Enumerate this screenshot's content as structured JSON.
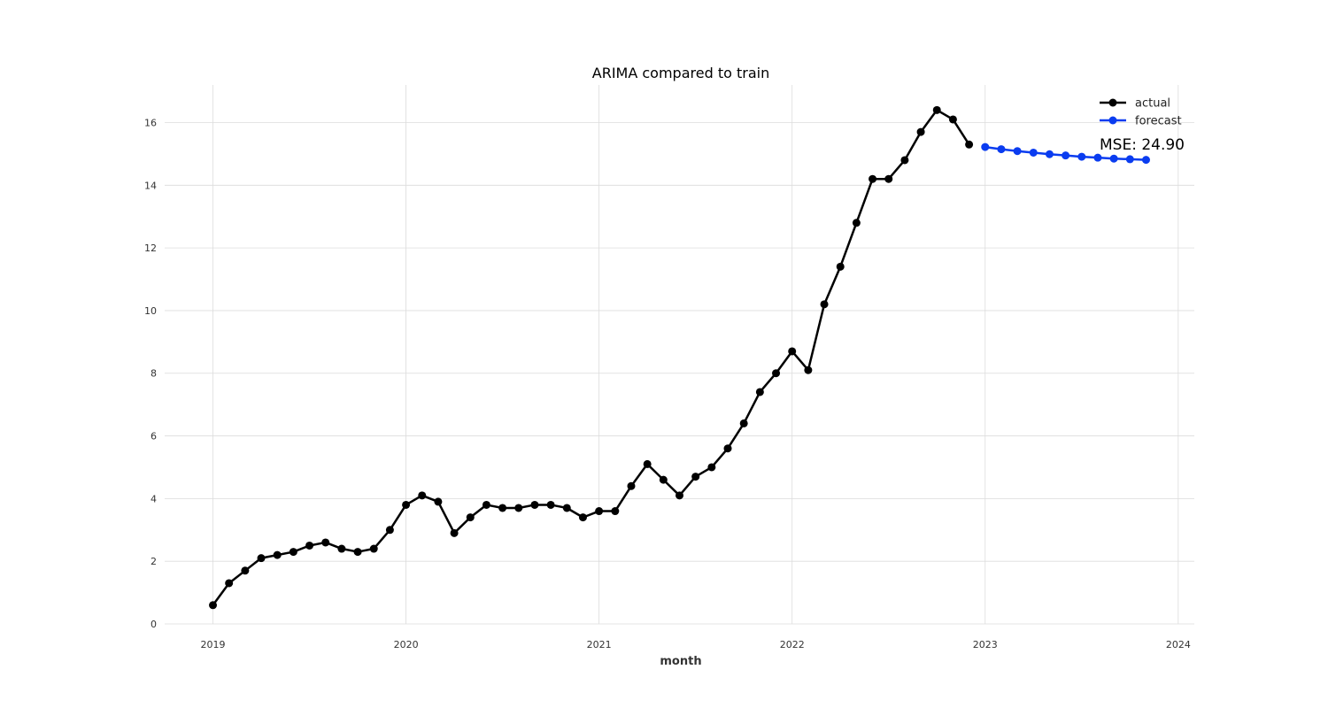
{
  "chart_data": {
    "type": "line",
    "title": "ARIMA compared to train",
    "xlabel": "month",
    "ylabel": "",
    "xlim": [
      "2018-10",
      "2024-02"
    ],
    "ylim": [
      0,
      17.2
    ],
    "x_ticks": [
      "2019",
      "2020",
      "2021",
      "2022",
      "2023",
      "2024"
    ],
    "y_ticks": [
      "0",
      "2",
      "4",
      "6",
      "8",
      "10",
      "12",
      "14",
      "16"
    ],
    "grid": true,
    "legend_position": "top-right",
    "annotation": "MSE: 24.90",
    "series": [
      {
        "name": "actual",
        "color": "#000000",
        "x": [
          "2019-01",
          "2019-02",
          "2019-03",
          "2019-04",
          "2019-05",
          "2019-06",
          "2019-07",
          "2019-08",
          "2019-09",
          "2019-10",
          "2019-11",
          "2019-12",
          "2020-01",
          "2020-02",
          "2020-03",
          "2020-04",
          "2020-05",
          "2020-06",
          "2020-07",
          "2020-08",
          "2020-09",
          "2020-10",
          "2020-11",
          "2020-12",
          "2021-01",
          "2021-02",
          "2021-03",
          "2021-04",
          "2021-05",
          "2021-06",
          "2021-07",
          "2021-08",
          "2021-09",
          "2021-10",
          "2021-11",
          "2021-12",
          "2022-01",
          "2022-02",
          "2022-03",
          "2022-04",
          "2022-05",
          "2022-06",
          "2022-07",
          "2022-08",
          "2022-09",
          "2022-10",
          "2022-11",
          "2022-12"
        ],
        "values": [
          0.6,
          1.3,
          1.7,
          2.1,
          2.2,
          2.3,
          2.5,
          2.6,
          2.4,
          2.3,
          2.4,
          3.0,
          3.8,
          4.1,
          3.9,
          2.9,
          3.4,
          3.8,
          3.7,
          3.7,
          3.8,
          3.8,
          3.7,
          3.4,
          3.6,
          3.6,
          4.4,
          5.1,
          4.6,
          4.1,
          4.7,
          5.0,
          5.6,
          6.4,
          7.4,
          8.0,
          8.7,
          8.1,
          10.2,
          11.4,
          12.8,
          14.2,
          14.2,
          14.8,
          15.7,
          16.4,
          16.1,
          15.3
        ]
      },
      {
        "name": "forecast",
        "color": "#0a3cf0",
        "x": [
          "2023-01",
          "2023-02",
          "2023-03",
          "2023-04",
          "2023-05",
          "2023-06",
          "2023-07",
          "2023-08",
          "2023-09",
          "2023-10",
          "2023-11"
        ],
        "values": [
          15.22,
          15.15,
          15.09,
          15.04,
          14.99,
          14.95,
          14.91,
          14.88,
          14.85,
          14.83,
          14.81
        ]
      }
    ]
  }
}
